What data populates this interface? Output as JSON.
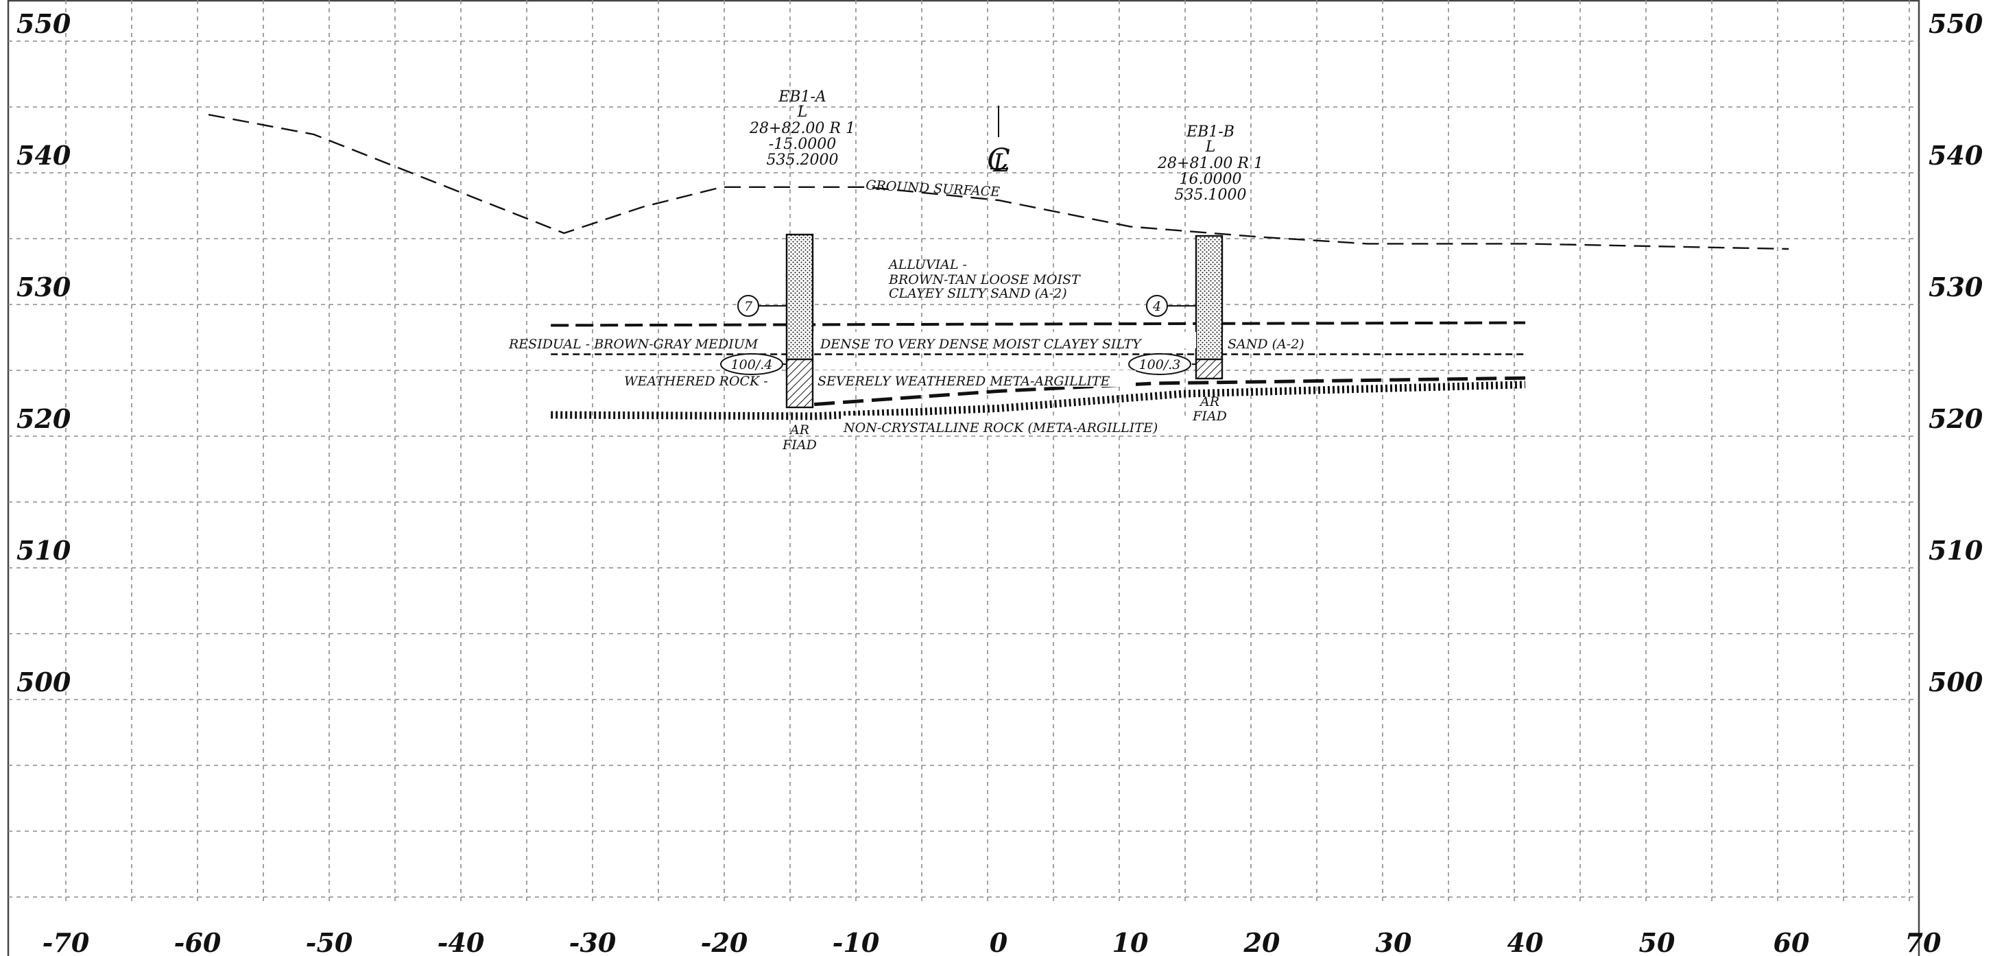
{
  "elevation_labels": [
    "550",
    "540",
    "530",
    "520",
    "510",
    "500"
  ],
  "offset_labels": [
    "-70",
    "-60",
    "-50",
    "-40",
    "-30",
    "-20",
    "-10",
    "0",
    "10",
    "20",
    "30",
    "40",
    "50",
    "60",
    "70"
  ],
  "centerline_symbol": "C̲L",
  "ground_surface_label": "GROUND SURFACE",
  "boring_a": {
    "id": "EB1-A",
    "line": "L",
    "station": "28+82.00 R 1",
    "offset": "-15.0000",
    "elevation": "535.2000",
    "n_value": "7",
    "refusal": "100/.4",
    "end_labels": [
      "AR",
      "FIAD"
    ]
  },
  "boring_b": {
    "id": "EB1-B",
    "line": "L",
    "station": "28+81.00 R 1",
    "offset": "16.0000",
    "elevation": "535.1000",
    "n_value": "4",
    "refusal": "100/.3",
    "end_labels": [
      "AR",
      "FIAD"
    ]
  },
  "strata": {
    "alluvial": [
      "ALLUVIAL -",
      "BROWN-TAN LOOSE MOIST",
      "CLAYEY SILTY SAND (A-2)"
    ],
    "residual_left": "RESIDUAL - BROWN-GRAY MEDIUM",
    "residual_mid": "DENSE TO VERY DENSE MOIST CLAYEY SILTY",
    "residual_right": "SAND (A-2)",
    "weathered_left": "WEATHERED ROCK -",
    "weathered_right": "SEVERELY WEATHERED META-ARGILLITE",
    "rock": "NON-CRYSTALLINE ROCK (META-ARGILLITE)"
  },
  "profile": {
    "ground_surface": [
      [
        -60,
        544
      ],
      [
        -52,
        542.5
      ],
      [
        -33,
        535
      ],
      [
        -27,
        537
      ],
      [
        -21,
        538.5
      ],
      [
        -10,
        538.5
      ],
      [
        0,
        537.5
      ],
      [
        10,
        535.5
      ],
      [
        20,
        534.7
      ],
      [
        28,
        534.2
      ],
      [
        40,
        534.2
      ],
      [
        60,
        533.8
      ]
    ],
    "alluvial_residual_boundary": [
      [
        -34,
        528
      ],
      [
        40,
        528.2
      ]
    ],
    "residual_weathered_boundary": [
      [
        -34,
        525.8
      ],
      [
        40,
        525.8
      ]
    ],
    "rock_line_top": [
      [
        -14,
        522
      ],
      [
        0,
        523
      ],
      [
        12,
        523.6
      ],
      [
        40,
        524
      ]
    ],
    "rock_line_bottom": [
      [
        -34,
        521.2
      ],
      [
        -14,
        521.1
      ],
      [
        0,
        521.7
      ],
      [
        14,
        522.8
      ],
      [
        40,
        523.5
      ]
    ]
  }
}
